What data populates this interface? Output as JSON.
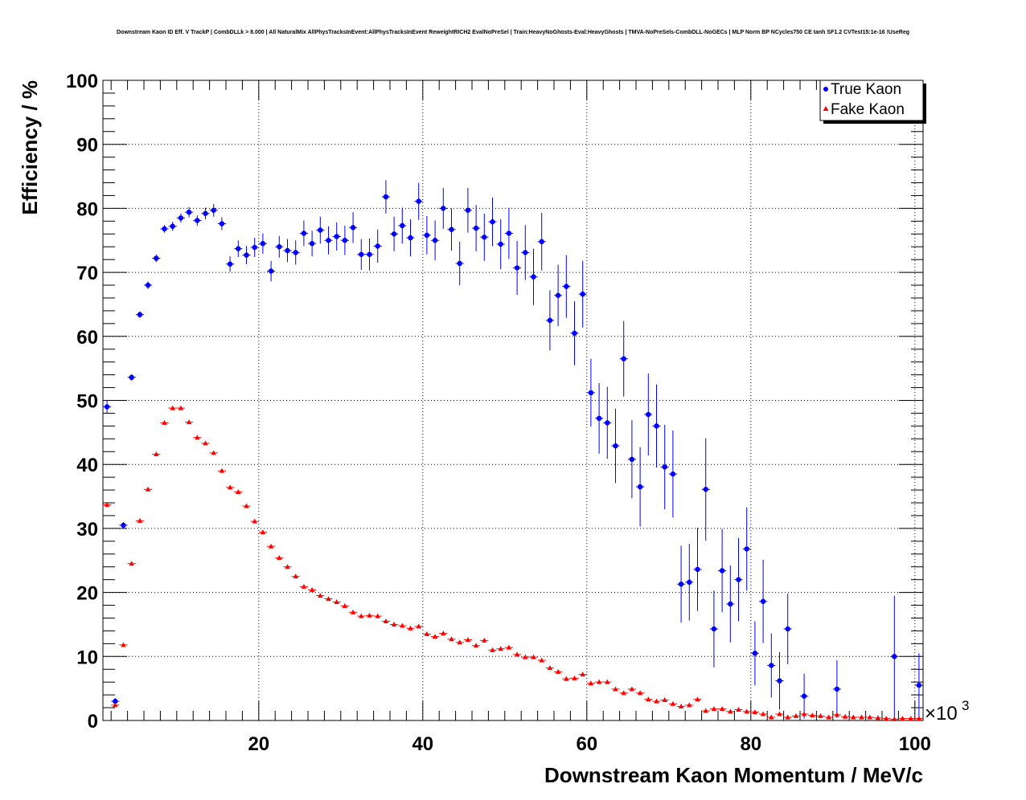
{
  "chart_data": {
    "type": "scatter",
    "title": "Downstream Kaon ID Eff. V TrackP | CombDLLk > 8.000 | All NaturalMix AllPhysTracksInEvent:AllPhysTracksInEvent ReweightRICH2 EvalNoPreSel | Train:HeavyNoGhosts-Eval:HeavyGhosts | TMVA-NoPreSels-CombDLL-NoGECs | MLP Norm BP NCycles750 CE tanh SF1.2 CVTest15:1e-16 !UseReg",
    "xlabel": "Downstream Kaon Momentum / MeV/c",
    "ylabel": "Efficiency / %",
    "x_multiplier": "×10",
    "x_multiplier_exp": "3",
    "xlim": [
      1,
      101
    ],
    "ylim": [
      0,
      100
    ],
    "x_ticks": [
      "20",
      "40",
      "60",
      "80",
      "100"
    ],
    "x_tick_values": [
      20,
      40,
      60,
      80,
      100
    ],
    "y_ticks": [
      "0",
      "10",
      "20",
      "30",
      "40",
      "50",
      "60",
      "70",
      "80",
      "90",
      "100"
    ],
    "y_tick_values": [
      0,
      10,
      20,
      30,
      40,
      50,
      60,
      70,
      80,
      90,
      100
    ],
    "grid": true,
    "legend_position": "top-right",
    "series": [
      {
        "name": "True Kaon",
        "color": "#0000ff",
        "marker": "circle",
        "x": [
          1.5,
          2.5,
          3.5,
          4.5,
          5.5,
          6.5,
          7.5,
          8.5,
          9.5,
          10.5,
          11.5,
          12.5,
          13.5,
          14.5,
          15.5,
          16.5,
          17.5,
          18.5,
          19.5,
          20.5,
          21.5,
          22.5,
          23.5,
          24.5,
          25.5,
          26.5,
          27.5,
          28.5,
          29.5,
          30.5,
          31.5,
          32.5,
          33.5,
          34.5,
          35.5,
          36.5,
          37.5,
          38.5,
          39.5,
          40.5,
          41.5,
          42.5,
          43.5,
          44.5,
          45.5,
          46.5,
          47.5,
          48.5,
          49.5,
          50.5,
          51.5,
          52.5,
          53.5,
          54.5,
          55.5,
          56.5,
          57.5,
          58.5,
          59.5,
          60.5,
          61.5,
          62.5,
          63.5,
          64.5,
          65.5,
          66.5,
          67.5,
          68.5,
          69.5,
          70.5,
          71.5,
          72.5,
          73.5,
          74.5,
          75.5,
          76.5,
          77.5,
          78.5,
          79.5,
          80.5,
          81.5,
          82.5,
          83.5,
          84.5,
          86.5,
          90.5,
          97.5,
          100.5
        ],
        "y": [
          49.0,
          3.0,
          30.5,
          53.6,
          63.4,
          68.0,
          72.2,
          76.8,
          77.2,
          78.5,
          79.4,
          78.1,
          79.2,
          79.7,
          77.6,
          71.3,
          73.7,
          72.7,
          73.9,
          74.5,
          70.2,
          74.0,
          73.4,
          73.1,
          76.1,
          74.5,
          76.6,
          75.0,
          75.6,
          75.0,
          77.0,
          72.8,
          72.8,
          74.1,
          81.8,
          76.0,
          77.3,
          75.4,
          81.1,
          75.8,
          75.0,
          80.0,
          76.7,
          71.4,
          79.7,
          76.9,
          75.5,
          77.9,
          74.4,
          76.1,
          70.7,
          73.1,
          69.3,
          74.8,
          62.5,
          66.4,
          67.8,
          60.5,
          66.6,
          51.2,
          47.2,
          46.5,
          42.9,
          56.5,
          40.8,
          36.5,
          47.8,
          46.0,
          39.6,
          38.5,
          21.3,
          21.6,
          23.6,
          36.1,
          14.3,
          23.4,
          18.2,
          22.0,
          26.8,
          10.5,
          18.6,
          8.6,
          6.2,
          14.3,
          3.8,
          4.9,
          10.0,
          5.5
        ],
        "err": [
          1.0,
          0.5,
          0.5,
          0.5,
          0.5,
          0.6,
          0.6,
          0.6,
          0.7,
          0.7,
          0.8,
          0.8,
          0.9,
          1.0,
          1.0,
          1.2,
          1.3,
          1.4,
          1.5,
          1.6,
          1.6,
          1.7,
          1.8,
          1.9,
          2.0,
          2.0,
          2.1,
          2.2,
          2.2,
          2.3,
          2.4,
          2.4,
          2.5,
          2.6,
          2.6,
          2.7,
          2.8,
          2.9,
          2.9,
          3.0,
          3.1,
          3.2,
          3.3,
          3.4,
          3.5,
          3.6,
          3.7,
          3.8,
          3.9,
          4.0,
          4.2,
          4.3,
          4.4,
          4.5,
          4.7,
          4.8,
          4.9,
          5.0,
          5.2,
          5.3,
          5.5,
          5.6,
          5.8,
          5.9,
          6.1,
          6.2,
          6.4,
          6.5,
          6.6,
          6.8,
          6.0,
          6.0,
          6.5,
          8.0,
          6.0,
          6.5,
          6.0,
          6.5,
          6.5,
          5.0,
          6.5,
          5.0,
          4.5,
          5.5,
          3.5,
          4.5,
          9.5,
          5.0
        ]
      },
      {
        "name": "Fake Kaon",
        "color": "#ff0000",
        "marker": "triangle",
        "x": [
          1.5,
          2.5,
          3.5,
          4.5,
          5.5,
          6.5,
          7.5,
          8.5,
          9.5,
          10.5,
          11.5,
          12.5,
          13.5,
          14.5,
          15.5,
          16.5,
          17.5,
          18.5,
          19.5,
          20.5,
          21.5,
          22.5,
          23.5,
          24.5,
          25.5,
          26.5,
          27.5,
          28.5,
          29.5,
          30.5,
          31.5,
          32.5,
          33.5,
          34.5,
          35.5,
          36.5,
          37.5,
          38.5,
          39.5,
          40.5,
          41.5,
          42.5,
          43.5,
          44.5,
          45.5,
          46.5,
          47.5,
          48.5,
          49.5,
          50.5,
          51.5,
          52.5,
          53.5,
          54.5,
          55.5,
          56.5,
          57.5,
          58.5,
          59.5,
          60.5,
          61.5,
          62.5,
          63.5,
          64.5,
          65.5,
          66.5,
          67.5,
          68.5,
          69.5,
          70.5,
          71.5,
          72.5,
          73.5,
          74.5,
          75.5,
          76.5,
          77.5,
          78.5,
          79.5,
          80.5,
          81.5,
          82.5,
          83.5,
          84.5,
          85.5,
          86.5,
          87.5,
          88.5,
          89.5,
          90.5,
          91.5,
          92.5,
          93.5,
          94.5,
          95.5,
          96.5,
          97.5,
          98.5,
          99.5,
          100.5
        ],
        "y": [
          33.7,
          2.4,
          11.8,
          24.5,
          31.2,
          36.1,
          41.6,
          46.5,
          48.8,
          48.8,
          46.6,
          44.2,
          43.3,
          41.8,
          39.0,
          36.4,
          35.7,
          33.5,
          31.1,
          29.4,
          27.2,
          25.4,
          24.0,
          22.5,
          20.9,
          20.4,
          19.5,
          19.0,
          18.5,
          17.9,
          16.9,
          16.3,
          16.4,
          16.3,
          15.5,
          15.0,
          14.8,
          14.4,
          14.7,
          13.5,
          13.1,
          13.6,
          12.7,
          12.2,
          12.6,
          11.7,
          12.5,
          11.0,
          11.2,
          11.4,
          10.3,
          9.9,
          9.9,
          9.4,
          8.2,
          7.6,
          6.5,
          6.6,
          7.2,
          5.8,
          6.0,
          6.0,
          4.9,
          4.3,
          4.9,
          4.3,
          3.3,
          3.0,
          3.2,
          2.6,
          2.2,
          2.4,
          3.3,
          1.5,
          1.8,
          1.8,
          1.4,
          1.7,
          1.4,
          1.3,
          1.0,
          0.5,
          1.0,
          0.5,
          0.7,
          1.0,
          0.8,
          0.7,
          0.5,
          0.9,
          0.6,
          0.5,
          0.5,
          0.5,
          0.4,
          0.3,
          0.2,
          0.3,
          0.3,
          0.3
        ],
        "err": [
          0.4,
          0.3,
          0.3,
          0.3,
          0.3,
          0.3,
          0.3,
          0.3,
          0.3,
          0.3,
          0.3,
          0.3,
          0.3,
          0.3,
          0.3,
          0.3,
          0.3,
          0.3,
          0.3,
          0.3,
          0.3,
          0.3,
          0.3,
          0.3,
          0.3,
          0.3,
          0.3,
          0.3,
          0.3,
          0.3,
          0.3,
          0.3,
          0.3,
          0.3,
          0.3,
          0.3,
          0.3,
          0.3,
          0.3,
          0.3,
          0.3,
          0.3,
          0.3,
          0.3,
          0.3,
          0.3,
          0.3,
          0.3,
          0.3,
          0.3,
          0.3,
          0.3,
          0.3,
          0.3,
          0.3,
          0.3,
          0.3,
          0.3,
          0.3,
          0.3,
          0.3,
          0.3,
          0.3,
          0.3,
          0.3,
          0.3,
          0.3,
          0.3,
          0.3,
          0.3,
          0.3,
          0.3,
          0.3,
          0.3,
          0.3,
          0.3,
          0.3,
          0.3,
          0.3,
          0.3,
          0.3,
          0.3,
          0.3,
          0.3,
          0.3,
          0.3,
          0.3,
          0.3,
          0.3,
          0.3,
          0.3,
          0.3,
          0.3,
          0.3,
          0.3,
          0.3,
          0.3,
          0.3,
          0.3,
          0.3
        ]
      }
    ]
  }
}
